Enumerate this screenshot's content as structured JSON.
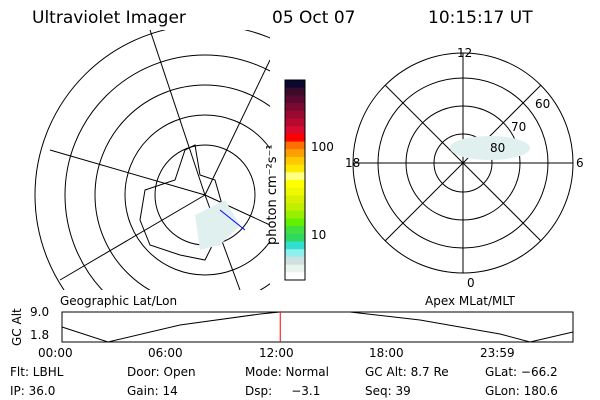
{
  "header": {
    "title": "Ultraviolet Imager",
    "date": "05 Oct 07",
    "time": "10:15:17 UT"
  },
  "colorbar": {
    "label": "photon cm⁻²s⁻¹",
    "ticks": [
      "100",
      "10"
    ],
    "colors": [
      "#0a0a30",
      "#3a0a2a",
      "#5a0a30",
      "#7a0a30",
      "#9a0a30",
      "#b80a30",
      "#d80a30",
      "#ff0000",
      "#ff7000",
      "#ffa000",
      "#ffc800",
      "#ffe800",
      "#ffff80",
      "#ffff00",
      "#f0f800",
      "#d8f000",
      "#c0f000",
      "#98f000",
      "#60f000",
      "#40e040",
      "#30d860",
      "#30e0d0",
      "#90f0f0",
      "#d0e0e0",
      "#e8f4ee",
      "#ffffff"
    ]
  },
  "polar": {
    "labels": {
      "top": "12",
      "left": "18",
      "right": "6",
      "bottom": "0",
      "lat60": "60",
      "lat70": "70",
      "lat80": "80"
    }
  },
  "panels": {
    "left_label": "Geographic Lat/Lon",
    "right_label": "Apex MLat/MLT"
  },
  "altplot": {
    "ylabel": "GC Alt",
    "ymax": "9.0",
    "ymin": "1.8",
    "xticks": [
      "00:00",
      "06:00",
      "12:00",
      "18:00",
      "23:59"
    ],
    "current_hour": 10.25,
    "line_color": "#ff0000"
  },
  "status": {
    "flt": "Flt: LBHL",
    "door": "Door: Open",
    "mode": "Mode: Normal",
    "gcalt": "GC Alt: 8.7 Re",
    "glat": "GLat: −66.2",
    "ip": "IP: 36.0",
    "gain": "Gain: 14",
    "dsp": "Dsp:     −3.1",
    "seq": "Seq: 39",
    "glon": "GLon: 180.6"
  }
}
